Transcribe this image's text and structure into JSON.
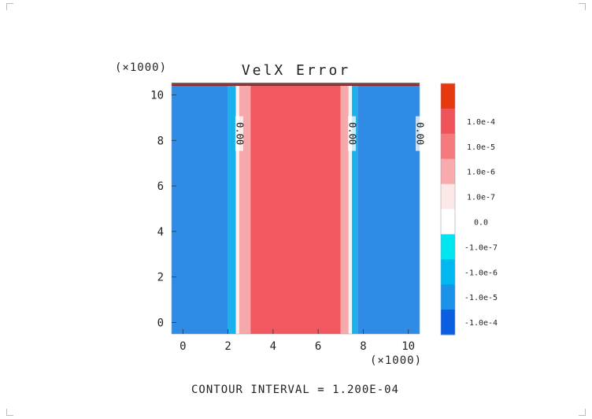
{
  "chart_data": {
    "type": "heatmap",
    "title": "VelX Error",
    "x_multiplier": "(×1000)",
    "y_multiplier": "(×1000)",
    "xlim": [
      -0.5,
      10.5
    ],
    "ylim": [
      -0.5,
      10.5
    ],
    "x_ticks": [
      0,
      2,
      4,
      6,
      8,
      10
    ],
    "y_ticks": [
      0,
      2,
      4,
      6,
      8,
      10
    ],
    "grid": false,
    "footer": "CONTOUR INTERVAL = 1.200E-04",
    "regions": [
      {
        "x0": -0.5,
        "x1": 2.0,
        "level": "-1.0e-5",
        "color": "#2f8be6"
      },
      {
        "x0": 2.0,
        "x1": 2.35,
        "level": "-1.0e-6",
        "color": "#19b2ec"
      },
      {
        "x0": 2.35,
        "x1": 2.5,
        "level": "0.0",
        "color": "#fff0f0"
      },
      {
        "x0": 2.5,
        "x1": 3.0,
        "level": "1.0e-6",
        "color": "#f6a9ab"
      },
      {
        "x0": 3.0,
        "x1": 7.0,
        "level": "1.0e-5",
        "color": "#f0595f"
      },
      {
        "x0": 7.0,
        "x1": 7.35,
        "level": "1.0e-6",
        "color": "#f6a9ab"
      },
      {
        "x0": 7.35,
        "x1": 7.5,
        "level": "0.0",
        "color": "#e6f8fb"
      },
      {
        "x0": 7.5,
        "x1": 7.75,
        "level": "-1.0e-6",
        "color": "#19b2ec"
      },
      {
        "x0": 7.75,
        "x1": 10.5,
        "level": "-1.0e-5",
        "color": "#2f8be6"
      }
    ],
    "contour_labels": [
      {
        "x": 2.5,
        "y": 8.3,
        "text": "0.00"
      },
      {
        "x": 7.5,
        "y": 8.3,
        "text": "0.00"
      },
      {
        "x": 10.5,
        "y": 8.3,
        "text": "0.00"
      }
    ],
    "colorbar": {
      "levels": [
        {
          "label": "",
          "color": "#e8380d"
        },
        {
          "label": "1.0e-4",
          "color": "#f0545a"
        },
        {
          "label": "1.0e-5",
          "color": "#f47a7d"
        },
        {
          "label": "1.0e-6",
          "color": "#f8aaac"
        },
        {
          "label": "1.0e-7",
          "color": "#fde8e8"
        },
        {
          "label": "0.0",
          "color": "#ffffff"
        },
        {
          "label": "-1.0e-7",
          "color": "#00e5ef"
        },
        {
          "label": "-1.0e-6",
          "color": "#00b8f0"
        },
        {
          "label": "-1.0e-5",
          "color": "#1a92ea"
        },
        {
          "label": "-1.0e-4",
          "color": "#0a5fe0"
        }
      ]
    }
  }
}
